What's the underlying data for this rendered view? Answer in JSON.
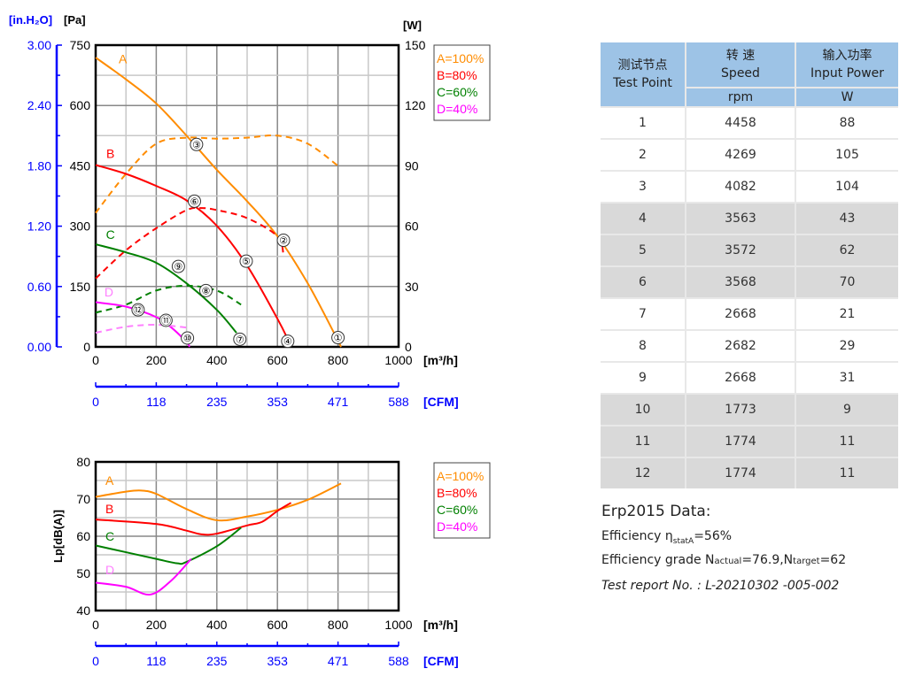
{
  "chart_data": [
    {
      "type": "line",
      "xlabel": "[m³/h]",
      "ylabel_left_inner": "[Pa]",
      "ylabel_left_outer": "[in.H₂O]",
      "ylabel_right": "[W]",
      "secondary_xlabel": "[CFM]",
      "xlim": [
        0,
        1000
      ],
      "ylim_pa": [
        0,
        750
      ],
      "ylim_w": [
        0,
        150
      ],
      "ylim_inh2o": [
        0,
        3.0
      ],
      "x_ticks": [
        "0",
        "200",
        "400",
        "600",
        "800",
        "1000"
      ],
      "pa_ticks": [
        "0",
        "150",
        "300",
        "450",
        "600",
        "750"
      ],
      "w_ticks": [
        "0",
        "30",
        "60",
        "90",
        "120",
        "150"
      ],
      "inh2o_ticks": [
        "0.00",
        "0.60",
        "1.20",
        "1.80",
        "2.40",
        "3.00"
      ],
      "cfm_ticks": [
        "0",
        "118",
        "235",
        "353",
        "471",
        "588"
      ],
      "grid": true,
      "legend_placement": "right",
      "legend": [
        "A=100%",
        "B=80%",
        "C=60%",
        "D=40%"
      ],
      "colors": {
        "A": "#ff8c00",
        "B": "#ff0000",
        "C": "#008000",
        "D": "#ff00ff",
        "D_label": "#ff80ff",
        "axis_blue": "#0000ff"
      },
      "series": [
        {
          "name": "A",
          "label": "A",
          "kind": "pressure",
          "unit": "Pa",
          "label_at": [
            76,
            716
          ],
          "points": [
            [
              0,
              719
            ],
            [
              100,
              665
            ],
            [
              200,
              605
            ],
            [
              300,
              525
            ],
            [
              400,
              440
            ],
            [
              500,
              362
            ],
            [
              600,
              275
            ],
            [
              700,
              158
            ],
            [
              790,
              30
            ],
            [
              810,
              0
            ]
          ]
        },
        {
          "name": "A",
          "kind": "power",
          "unit": "W",
          "points": [
            [
              0,
              66.6
            ],
            [
              100,
              86
            ],
            [
              200,
              101
            ],
            [
              300,
              104
            ],
            [
              400,
              103.5
            ],
            [
              500,
              104
            ],
            [
              600,
              105
            ],
            [
              700,
              101
            ],
            [
              800,
              90
            ]
          ]
        },
        {
          "name": "B",
          "label": "B",
          "kind": "pressure",
          "unit": "Pa",
          "label_at": [
            35,
            481
          ],
          "points": [
            [
              0,
              452
            ],
            [
              100,
              430
            ],
            [
              200,
              400
            ],
            [
              300,
              364
            ],
            [
              400,
              301
            ],
            [
              500,
              202
            ],
            [
              600,
              70
            ],
            [
              640,
              10
            ]
          ]
        },
        {
          "name": "B",
          "kind": "power",
          "unit": "W",
          "points": [
            [
              0,
              34
            ],
            [
              100,
              48
            ],
            [
              200,
              59
            ],
            [
              300,
              68
            ],
            [
              350,
              69
            ],
            [
              400,
              68
            ],
            [
              500,
              64
            ],
            [
              600,
              55
            ],
            [
              620,
              46
            ]
          ]
        },
        {
          "name": "C",
          "label": "C",
          "kind": "pressure",
          "unit": "Pa",
          "label_at": [
            34,
            279
          ],
          "points": [
            [
              0,
              255
            ],
            [
              100,
              235
            ],
            [
              200,
              209
            ],
            [
              300,
              158
            ],
            [
              400,
              92
            ],
            [
              465,
              35
            ]
          ]
        },
        {
          "name": "C",
          "kind": "power",
          "unit": "W",
          "points": [
            [
              0,
              17
            ],
            [
              100,
              21
            ],
            [
              200,
              28
            ],
            [
              300,
              30.4
            ],
            [
              400,
              28
            ],
            [
              480,
              21
            ]
          ]
        },
        {
          "name": "D",
          "label": "D",
          "kind": "pressure",
          "unit": "Pa",
          "label_at": [
            29,
            136
          ],
          "points": [
            [
              0,
              111
            ],
            [
              100,
              100
            ],
            [
              200,
              74
            ],
            [
              250,
              48
            ],
            [
              300,
              12
            ],
            [
              310,
              0
            ]
          ]
        },
        {
          "name": "D",
          "kind": "power",
          "unit": "W",
          "points": [
            [
              0,
              7
            ],
            [
              100,
              10
            ],
            [
              200,
              11
            ],
            [
              300,
              9.6
            ]
          ]
        }
      ],
      "test_points": [
        {
          "label": "①",
          "x": 800,
          "pa": 23
        },
        {
          "label": "②",
          "x": 620,
          "pa": 265
        },
        {
          "label": "③",
          "x": 333,
          "pa": 503
        },
        {
          "label": "④",
          "x": 634,
          "pa": 14
        },
        {
          "label": "⑤",
          "x": 497,
          "pa": 213
        },
        {
          "label": "⑥",
          "x": 326,
          "pa": 362
        },
        {
          "label": "⑦",
          "x": 476,
          "pa": 19
        },
        {
          "label": "⑧",
          "x": 364,
          "pa": 140
        },
        {
          "label": "⑨",
          "x": 273,
          "pa": 200
        },
        {
          "label": "⑩",
          "x": 303,
          "pa": 22
        },
        {
          "label": "⑪",
          "x": 232,
          "pa": 66
        },
        {
          "label": "⑫",
          "x": 140,
          "pa": 92
        }
      ]
    },
    {
      "type": "line",
      "xlabel": "[m³/h]",
      "ylabel": "Lp[dB(A)]",
      "secondary_xlabel": "[CFM]",
      "xlim": [
        0,
        1000
      ],
      "ylim": [
        40,
        80
      ],
      "x_ticks": [
        "0",
        "200",
        "400",
        "600",
        "800",
        "1000"
      ],
      "y_ticks": [
        "40",
        "50",
        "60",
        "70",
        "80"
      ],
      "cfm_ticks": [
        "0",
        "118",
        "235",
        "353",
        "471",
        "588"
      ],
      "grid": true,
      "legend_placement": "right",
      "legend": [
        "A=100%",
        "B=80%",
        "C=60%",
        "D=40%"
      ],
      "series": [
        {
          "name": "A",
          "label": "A",
          "label_at": [
            32,
            75
          ],
          "points": [
            [
              0,
              70.6
            ],
            [
              100,
              72
            ],
            [
              150,
              72.3
            ],
            [
              200,
              71.4
            ],
            [
              300,
              67.3
            ],
            [
              400,
              64.3
            ],
            [
              500,
              65.3
            ],
            [
              600,
              67.1
            ],
            [
              700,
              69.8
            ],
            [
              810,
              74.2
            ]
          ]
        },
        {
          "name": "B",
          "label": "B",
          "label_at": [
            32,
            67.4
          ],
          "points": [
            [
              0,
              64.5
            ],
            [
              200,
              63.3
            ],
            [
              300,
              61.5
            ],
            [
              350,
              60.5
            ],
            [
              400,
              60.7
            ],
            [
              500,
              62.9
            ],
            [
              550,
              63.9
            ],
            [
              600,
              66.8
            ],
            [
              645,
              69
            ]
          ]
        },
        {
          "name": "C",
          "label": "C",
          "label_at": [
            32,
            60
          ],
          "points": [
            [
              0,
              57.5
            ],
            [
              100,
              55.7
            ],
            [
              200,
              53.9
            ],
            [
              270,
              52.7
            ],
            [
              300,
              53.1
            ],
            [
              400,
              57.3
            ],
            [
              480,
              62.3
            ]
          ]
        },
        {
          "name": "D",
          "label": "D",
          "label_at": [
            32,
            51
          ],
          "points": [
            [
              0,
              47.5
            ],
            [
              100,
              46.4
            ],
            [
              180,
              44.3
            ],
            [
              250,
              48.1
            ],
            [
              315,
              53.9
            ]
          ]
        }
      ]
    }
  ],
  "table": {
    "header": {
      "test_point_cn": "测试节点",
      "test_point_en": "Test Point",
      "speed_cn": "转 速",
      "speed_en": "Speed",
      "speed_unit": "rpm",
      "power_cn": "输入功率",
      "power_en": "Input Power",
      "power_unit": "W"
    },
    "colors": {
      "header": "#9dc3e6",
      "row_light": "#ffffff",
      "row_dark": "#d9d9d9",
      "separator": "#e8e8e8"
    },
    "rows": [
      {
        "point": "1",
        "speed": "4458",
        "power": "88",
        "shade": "light"
      },
      {
        "point": "2",
        "speed": "4269",
        "power": "105",
        "shade": "light"
      },
      {
        "point": "3",
        "speed": "4082",
        "power": "104",
        "shade": "light"
      },
      {
        "point": "4",
        "speed": "3563",
        "power": "43",
        "shade": "dark"
      },
      {
        "point": "5",
        "speed": "3572",
        "power": "62",
        "shade": "dark"
      },
      {
        "point": "6",
        "speed": "3568",
        "power": "70",
        "shade": "dark"
      },
      {
        "point": "7",
        "speed": "2668",
        "power": "21",
        "shade": "light"
      },
      {
        "point": "8",
        "speed": "2682",
        "power": "29",
        "shade": "light"
      },
      {
        "point": "9",
        "speed": "2668",
        "power": "31",
        "shade": "light"
      },
      {
        "point": "10",
        "speed": "1773",
        "power": "9",
        "shade": "dark"
      },
      {
        "point": "11",
        "speed": "1774",
        "power": "11",
        "shade": "dark"
      },
      {
        "point": "12",
        "speed": "1774",
        "power": "11",
        "shade": "dark"
      }
    ]
  },
  "info": {
    "erp_title": "Erp2015  Data:",
    "efficiency_prefix": "Efficiency η",
    "efficiency_sub": "statA",
    "efficiency_value": "=56%",
    "grade_prefix": "Efficiency grade  N",
    "grade_sub1": "actual",
    "grade_mid": "=76.9,N",
    "grade_sub2": "target",
    "grade_end": "=62",
    "report": "Test report No.  : L-20210302 -005-002"
  }
}
